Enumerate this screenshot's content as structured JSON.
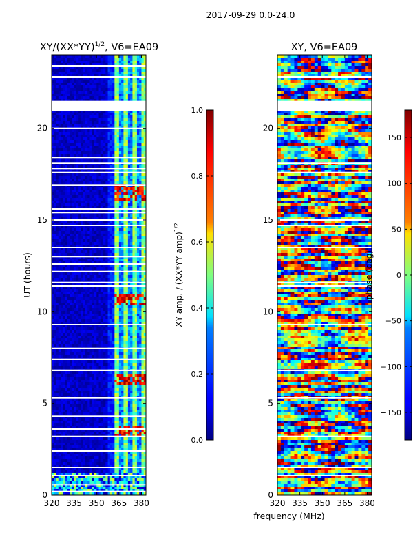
{
  "suptitle": "2017-09-29 0.0-24.0",
  "shared_xlabel": "frequency (MHz)",
  "chart_data": [
    {
      "type": "heatmap",
      "title_main": "XY/(XX*YY)",
      "title_sup": "1/2",
      "title_rest": ", V6=EA09",
      "ylabel": "UT (hours)",
      "xlim": [
        320,
        383
      ],
      "ylim": [
        0,
        24
      ],
      "x_ticks": [
        "320",
        "335",
        "350",
        "365",
        "380"
      ],
      "x_tick_values": [
        320,
        335,
        350,
        365,
        380
      ],
      "y_ticks": [
        "0",
        "5",
        "10",
        "15",
        "20"
      ],
      "y_tick_values": [
        0,
        5,
        10,
        15,
        20
      ],
      "colorbar": {
        "label_main": "XY amp. / (XX*YY amp)",
        "label_sup": "1/2",
        "range": [
          0.0,
          1.0
        ],
        "ticks": [
          "0.0",
          "0.2",
          "0.4",
          "0.6",
          "0.8",
          "1.0"
        ],
        "tick_values": [
          0.0,
          0.2,
          0.4,
          0.6,
          0.8,
          1.0
        ]
      },
      "gap_hours": [
        0.2,
        0.55,
        1.05,
        1.5,
        2.4,
        3.2,
        3.6,
        4.3,
        5.3,
        6.8,
        7.4,
        8.0,
        9.3,
        11.4,
        11.6,
        12.2,
        12.6,
        13.0,
        13.5,
        14.7,
        15.0,
        15.4,
        15.6,
        16.9,
        17.6,
        17.8,
        18.1,
        18.4,
        20.0,
        22.8,
        23.4
      ],
      "blank_bands": [
        [
          20.95,
          21.5
        ]
      ],
      "bright_bands": [
        [
          16.0,
          16.9
        ],
        [
          6.0,
          6.6
        ],
        [
          3.2,
          3.8
        ],
        [
          10.3,
          11.0
        ]
      ]
    },
    {
      "type": "heatmap",
      "title": "XY, V6=EA09",
      "xlim": [
        320,
        383
      ],
      "ylim": [
        0,
        24
      ],
      "x_ticks": [
        "320",
        "335",
        "350",
        "365",
        "380"
      ],
      "x_tick_values": [
        320,
        335,
        350,
        365,
        380
      ],
      "y_ticks": [
        "0",
        "5",
        "10",
        "15",
        "20"
      ],
      "y_tick_values": [
        0,
        5,
        10,
        15,
        20
      ],
      "colorbar": {
        "label": "phase (deg)",
        "range": [
          -180,
          180
        ],
        "ticks": [
          "−150",
          "−100",
          "−50",
          "0",
          "50",
          "100",
          "150"
        ],
        "tick_values": [
          -150,
          -100,
          -50,
          0,
          50,
          100,
          150
        ]
      },
      "gap_hours": [
        1.05,
        1.5,
        3.2,
        5.3,
        6.8,
        9.3,
        11.4,
        11.6,
        13.5,
        14.7,
        15.0,
        17.6,
        18.1,
        22.8
      ],
      "blank_bands": [
        [
          20.95,
          21.5
        ]
      ]
    }
  ]
}
